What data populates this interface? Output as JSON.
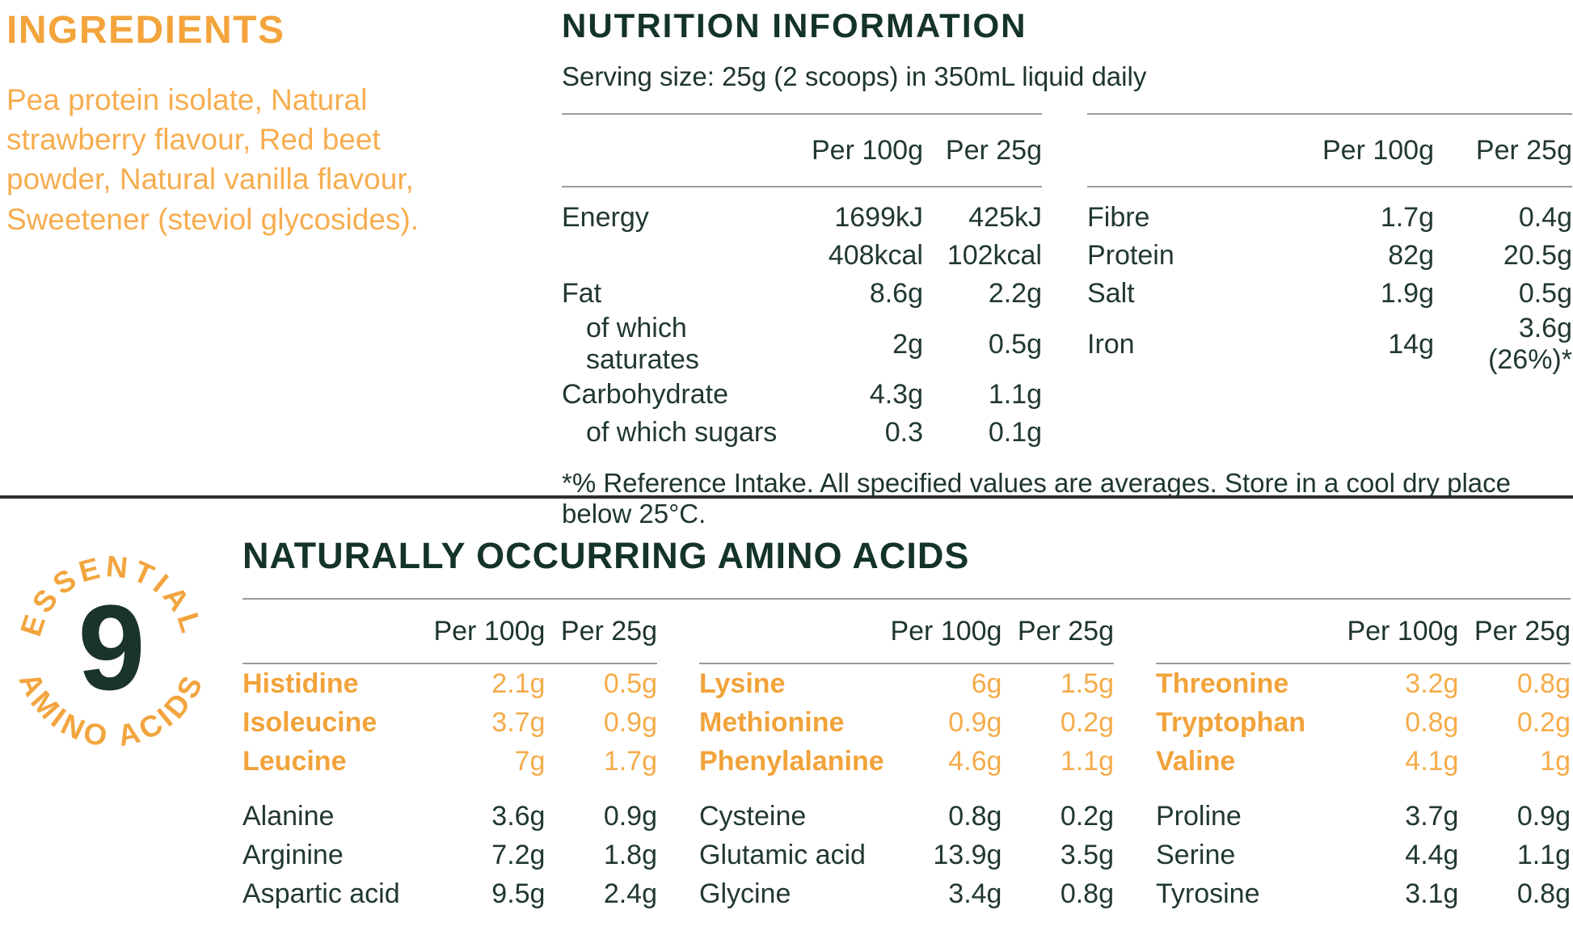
{
  "colors": {
    "orange": "#F3A43C",
    "orange_light": "#F6AD4F",
    "dark_green": "#14332B",
    "text_dark": "#213831",
    "rule_gray": "#9b9b9b",
    "divider": "#2e2e2e"
  },
  "ingredients": {
    "title": "INGREDIENTS",
    "text": "Pea protein isolate, Natural strawberry flavour, Red beet powder, Natural vanilla flavour, Sweetener (steviol glycosides)."
  },
  "nutrition": {
    "title": "NUTRITION INFORMATION",
    "serving": "Serving size: 25g (2 scoops) in 350mL liquid daily",
    "col_headers": [
      "Per 100g",
      "Per 25g"
    ],
    "left_rows": [
      {
        "label": "Energy",
        "indent": false,
        "per100": "1699kJ",
        "per25": "425kJ"
      },
      {
        "label": "",
        "indent": false,
        "per100": "408kcal",
        "per25": "102kcal"
      },
      {
        "label": "Fat",
        "indent": false,
        "per100": "8.6g",
        "per25": "2.2g"
      },
      {
        "label": "of which saturates",
        "indent": true,
        "per100": "2g",
        "per25": "0.5g"
      },
      {
        "label": "Carbohydrate",
        "indent": false,
        "per100": "4.3g",
        "per25": "1.1g"
      },
      {
        "label": "of which sugars",
        "indent": true,
        "per100": "0.3",
        "per25": "0.1g"
      }
    ],
    "right_rows": [
      {
        "label": "Fibre",
        "indent": false,
        "per100": "1.7g",
        "per25": "0.4g"
      },
      {
        "label": "Protein",
        "indent": false,
        "per100": "82g",
        "per25": "20.5g"
      },
      {
        "label": "Salt",
        "indent": false,
        "per100": "1.9g",
        "per25": "0.5g"
      },
      {
        "label": "Iron",
        "indent": false,
        "per100": "14g",
        "per25": "3.6g (26%)*"
      }
    ],
    "footnote": "*% Reference Intake. All specified values are averages. Store in a cool dry place below 25°C."
  },
  "badge": {
    "top": "ESSENTIAL",
    "number": "9",
    "bottom": "AMINO ACIDS"
  },
  "amino": {
    "title": "NATURALLY OCCURRING AMINO ACIDS",
    "col_headers": [
      "Per 100g",
      "Per 25g"
    ],
    "groups": [
      {
        "essential": [
          [
            "Histidine",
            "2.1g",
            "0.5g"
          ],
          [
            "Isoleucine",
            "3.7g",
            "0.9g"
          ],
          [
            "Leucine",
            "7g",
            "1.7g"
          ]
        ],
        "other": [
          [
            "Alanine",
            "3.6g",
            "0.9g"
          ],
          [
            "Arginine",
            "7.2g",
            "1.8g"
          ],
          [
            "Aspartic acid",
            "9.5g",
            "2.4g"
          ]
        ]
      },
      {
        "essential": [
          [
            "Lysine",
            "6g",
            "1.5g"
          ],
          [
            "Methionine",
            "0.9g",
            "0.2g"
          ],
          [
            "Phenylalanine",
            "4.6g",
            "1.1g"
          ]
        ],
        "other": [
          [
            "Cysteine",
            "0.8g",
            "0.2g"
          ],
          [
            "Glutamic acid",
            "13.9g",
            "3.5g"
          ],
          [
            "Glycine",
            "3.4g",
            "0.8g"
          ]
        ]
      },
      {
        "essential": [
          [
            "Threonine",
            "3.2g",
            "0.8g"
          ],
          [
            "Tryptophan",
            "0.8g",
            "0.2g"
          ],
          [
            "Valine",
            "4.1g",
            "1g"
          ]
        ],
        "other": [
          [
            "Proline",
            "3.7g",
            "0.9g"
          ],
          [
            "Serine",
            "4.4g",
            "1.1g"
          ],
          [
            "Tyrosine",
            "3.1g",
            "0.8g"
          ]
        ]
      }
    ]
  }
}
